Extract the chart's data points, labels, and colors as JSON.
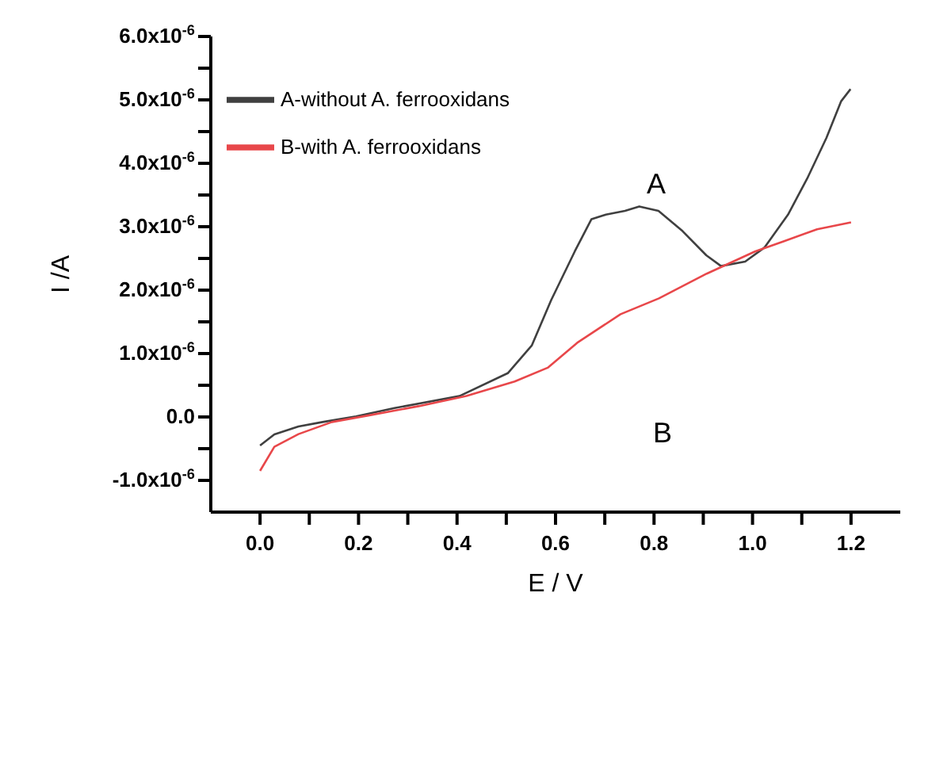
{
  "chart_data": {
    "type": "line",
    "xlabel": "E / V",
    "ylabel": "I /A",
    "xlim": [
      -0.1,
      1.3
    ],
    "xticks": [
      {
        "value": 0,
        "label": "0.0"
      },
      {
        "value": 0.1,
        "label": null
      },
      {
        "value": 0.2,
        "label": "0.2"
      },
      {
        "value": 0.3,
        "label": null
      },
      {
        "value": 0.4,
        "label": "0.4"
      },
      {
        "value": 0.5,
        "label": null
      },
      {
        "value": 0.6,
        "label": "0.6"
      },
      {
        "value": 0.7,
        "label": null
      },
      {
        "value": 0.8,
        "label": "0.8"
      },
      {
        "value": 0.9,
        "label": null
      },
      {
        "value": 1.0,
        "label": "1.0"
      },
      {
        "value": 1.1,
        "label": null
      },
      {
        "value": 1.2,
        "label": "1.2"
      }
    ],
    "ylim": [
      -1.5e-06,
      6e-06
    ],
    "yticks": [
      {
        "value": -1e-06,
        "label": "-1.0x10$^{-6}$"
      },
      {
        "value": -5e-07,
        "label": null
      },
      {
        "value": 0,
        "label": "0.0"
      },
      {
        "value": 5e-07,
        "label": null
      },
      {
        "value": 1e-06,
        "label": "1.0x10$^{-6}$"
      },
      {
        "value": 1.5e-06,
        "label": null
      },
      {
        "value": 2e-06,
        "label": "2.0x10$^{-6}$"
      },
      {
        "value": 2.5e-06,
        "label": null
      },
      {
        "value": 3e-06,
        "label": "3.0x10$^{-6}$"
      },
      {
        "value": 3.5e-06,
        "label": null
      },
      {
        "value": 4e-06,
        "label": "4.0x10$^{-6}$"
      },
      {
        "value": 4.5e-06,
        "label": null
      },
      {
        "value": 5e-06,
        "label": "5.0x10$^{-6}$"
      },
      {
        "value": 5.5e-06,
        "label": null
      },
      {
        "value": 6e-06,
        "label": "6.0x10$^{-6}$"
      }
    ],
    "legend": "top left",
    "marker": "none",
    "line_style": "solid",
    "annotations": [
      "A",
      "B"
    ],
    "series": [
      {
        "name": "A-without A. ferrooxidans",
        "color": "#404040",
        "x": [
          0.0,
          0.029,
          0.078,
          0.127,
          0.195,
          0.273,
          0.405,
          0.503,
          0.552,
          0.591,
          0.639,
          0.673,
          0.702,
          0.741,
          0.77,
          0.809,
          0.858,
          0.906,
          0.936,
          0.985,
          1.024,
          1.072,
          1.111,
          1.15,
          1.18,
          1.199
        ],
        "values": [
          -4.5e-07,
          -2.75e-07,
          -1.5e-07,
          -8e-08,
          1e-08,
          1.4e-07,
          3.3e-07,
          6.9e-07,
          1.13e-06,
          1.84e-06,
          2.61e-06,
          3.12e-06,
          3.19e-06,
          3.25e-06,
          3.32e-06,
          3.25e-06,
          2.93e-06,
          2.55e-06,
          2.38e-06,
          2.45e-06,
          2.67e-06,
          3.19e-06,
          3.76e-06,
          4.4e-06,
          4.98e-06,
          5.17e-06
        ]
      },
      {
        "name": "B-with A. ferrooxidans",
        "color": "#e8474a",
        "x": [
          0.0,
          0.029,
          0.078,
          0.146,
          0.224,
          0.322,
          0.419,
          0.517,
          0.585,
          0.644,
          0.732,
          0.81,
          0.907,
          1.005,
          1.063,
          1.131,
          1.2
        ],
        "values": [
          -8.5e-07,
          -4.7e-07,
          -2.7e-07,
          -8e-08,
          3e-08,
          1.7e-07,
          3.3e-07,
          5.6e-07,
          7.8e-07,
          1.17e-06,
          1.62e-06,
          1.87e-06,
          2.26e-06,
          2.61e-06,
          2.77e-06,
          2.96e-06,
          3.07e-06
        ]
      }
    ]
  }
}
